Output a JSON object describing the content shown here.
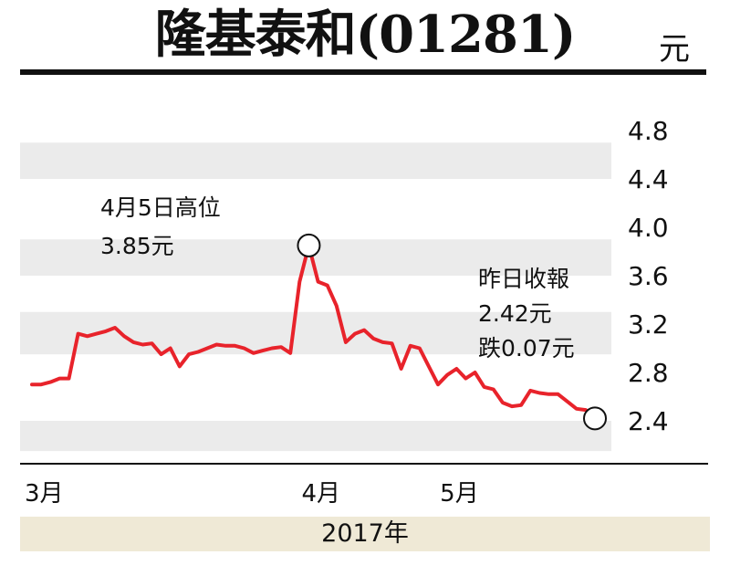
{
  "header": {
    "title": "隆基泰和(01281)",
    "unit": "元"
  },
  "annotations": {
    "high_date": "4月5日高位",
    "high_value": "3.85元",
    "close_heading": "昨日收報",
    "close_value": "2.42元",
    "close_change": "跌0.07元"
  },
  "footer": {
    "year_label": "2017年"
  },
  "colors": {
    "line": "#e8232b",
    "band": "#ebebeb",
    "footer_bg": "#efe9d6"
  },
  "chart_data": {
    "type": "line",
    "x_labels": [
      "3月",
      "4月",
      "5月"
    ],
    "yticks": [
      "4.8",
      "4.4",
      "4.0",
      "3.6",
      "3.2",
      "2.8",
      "2.4"
    ],
    "ylim": [
      2.2,
      4.95
    ],
    "series": [
      {
        "values": [
          2.7,
          2.7,
          2.72,
          2.75,
          2.75,
          3.12,
          3.1,
          3.12,
          3.14,
          3.17,
          3.1,
          3.05,
          3.03,
          3.04,
          2.95,
          3.0,
          2.85,
          2.95,
          2.97,
          3.0,
          3.03,
          3.02,
          3.02,
          3.0,
          2.96,
          2.98,
          3.0,
          3.01,
          2.96,
          3.55,
          3.85,
          3.55,
          3.52,
          3.35,
          3.05,
          3.12,
          3.15,
          3.08,
          3.05,
          3.04,
          2.83,
          3.02,
          3.0,
          2.85,
          2.7,
          2.78,
          2.83,
          2.75,
          2.8,
          2.68,
          2.66,
          2.55,
          2.52,
          2.53,
          2.65,
          2.63,
          2.62,
          2.62,
          2.56,
          2.5,
          2.49,
          2.42
        ]
      }
    ],
    "markers": [
      {
        "label": "high",
        "index": 30,
        "value": 3.85
      },
      {
        "label": "close",
        "index": 61,
        "value": 2.42
      }
    ],
    "grid": "alternating horizontal bands"
  }
}
